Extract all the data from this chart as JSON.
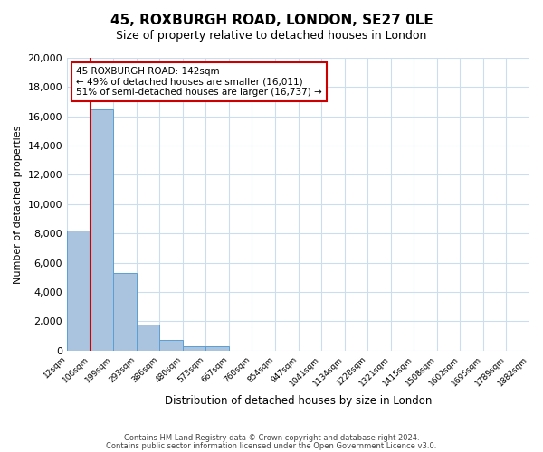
{
  "title": "45, ROXBURGH ROAD, LONDON, SE27 0LE",
  "subtitle": "Size of property relative to detached houses in London",
  "xlabel": "Distribution of detached houses by size in London",
  "ylabel": "Number of detached properties",
  "bar_values": [
    8200,
    16500,
    5300,
    1800,
    750,
    300,
    300,
    0,
    0,
    0,
    0,
    0,
    0,
    0,
    0,
    0,
    0,
    0,
    0,
    0
  ],
  "bin_labels": [
    "12sqm",
    "106sqm",
    "199sqm",
    "293sqm",
    "386sqm",
    "480sqm",
    "573sqm",
    "667sqm",
    "760sqm",
    "854sqm",
    "947sqm",
    "1041sqm",
    "1134sqm",
    "1228sqm",
    "1321sqm",
    "1415sqm",
    "1508sqm",
    "1602sqm",
    "1695sqm",
    "1789sqm",
    "1882sqm"
  ],
  "bar_color": "#aac4e0",
  "bar_edge_color": "#5a9fd4",
  "vline_color": "#cc0000",
  "ylim": [
    0,
    20000
  ],
  "yticks": [
    0,
    2000,
    4000,
    6000,
    8000,
    10000,
    12000,
    14000,
    16000,
    18000,
    20000
  ],
  "annotation_title": "45 ROXBURGH ROAD: 142sqm",
  "annotation_line1": "← 49% of detached houses are smaller (16,011)",
  "annotation_line2": "51% of semi-detached houses are larger (16,737) →",
  "annotation_box_color": "#ffffff",
  "annotation_box_edge": "#cc0000",
  "footer1": "Contains HM Land Registry data © Crown copyright and database right 2024.",
  "footer2": "Contains public sector information licensed under the Open Government Licence v3.0.",
  "background_color": "#ffffff",
  "grid_color": "#ccddee"
}
